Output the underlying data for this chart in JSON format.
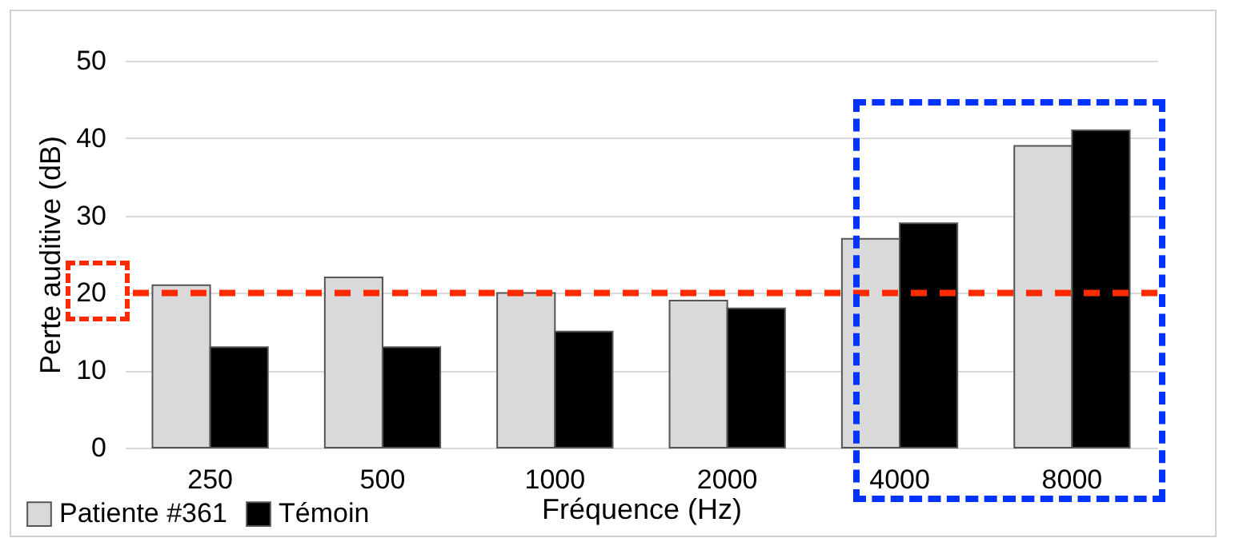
{
  "chart_data": {
    "type": "bar",
    "xlabel": "Fréquence (Hz)",
    "ylabel": "Perte auditive (dB)",
    "categories": [
      "250",
      "500",
      "1000",
      "2000",
      "4000",
      "8000"
    ],
    "series": [
      {
        "name": "Patiente #361",
        "color": "#d9d9d9",
        "values": [
          21,
          22,
          20,
          19,
          27,
          39
        ]
      },
      {
        "name": "Témoin",
        "color": "#000000",
        "values": [
          13,
          13,
          15,
          18,
          29,
          41
        ]
      }
    ],
    "ylim": [
      0,
      50
    ],
    "yticks": [
      0,
      10,
      20,
      30,
      40,
      50
    ],
    "grid": "y",
    "legend": "bottom left",
    "ref_lines": [
      {
        "axis": "y",
        "value": 20,
        "color": "#ff2a00",
        "line_style": "dashed"
      }
    ]
  }
}
